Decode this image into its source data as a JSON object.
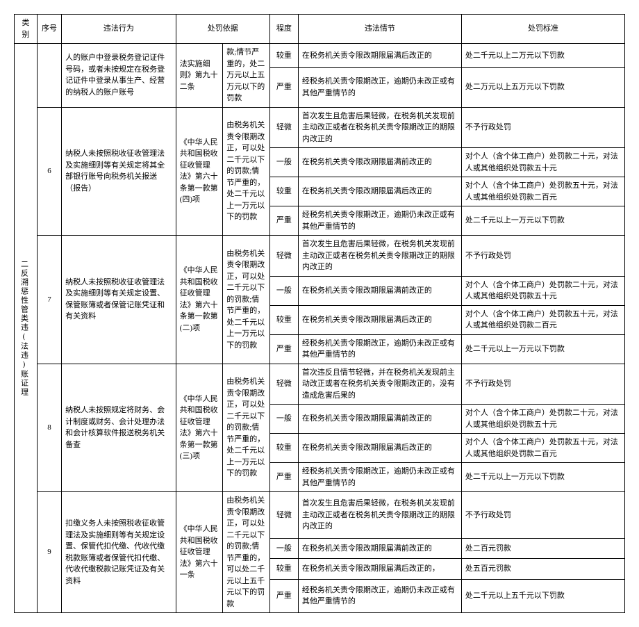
{
  "headers": {
    "category": "类别",
    "num": "序号",
    "act": "违法行为",
    "basis": "处罚依据",
    "severity": "程度",
    "circumstance": "违法情节",
    "standard": "处罚标准"
  },
  "category_label": "二反溯惩性管类违(法违)账证理",
  "groups": [
    {
      "num": "",
      "act": "人的账户中登录税务登记证件号码，或者未按规定在税务登记证件中登录从事生产、经营的纳税人的账户账号",
      "basis": "法实施细则》第九十二条",
      "basis2": "款;情节严重的，处二万元以上五万元以下的罚款",
      "rows": [
        {
          "sev": "较重",
          "circ": "在税务机关责令限改期限届满后改正的",
          "std": "处二千元以上二万元以下罚款"
        },
        {
          "sev": "严重",
          "circ": "经税务机关责令限期改正，逾期仍未改正或有其他严重情节的",
          "std": "处二万元以上五万元以下罚款"
        }
      ]
    },
    {
      "num": "6",
      "act": "纳税人未按照税收征收管理法及实施细则等有关规定将其全部银行账号向税务机关报送（报告）",
      "basis": "《中华人民共和国税收征收管理法》第六十条第一款第(四)项",
      "basis2": "由税务机关责令限期改正，可以处二千元以下的罚款;情节严重的，处二千元以上一万元以下的罚款",
      "rows": [
        {
          "sev": "轻微",
          "circ": "首次发生且危害后果轻微，在税务机关发现前主动改正或者在税务机关责令限期改正的期限内改正的",
          "std": "不予行政处罚"
        },
        {
          "sev": "一般",
          "circ": "在税务机关责令限改期限届满前改正的",
          "std": "对个人（含个体工商户）处罚款二十元，对法人或其他组织处罚款五十元"
        },
        {
          "sev": "较重",
          "circ": "在税务机关责令限改期限届满后改正的",
          "std": "对个人（含个体工商户）处罚款五十元，对法人或其他组织处罚款二百元"
        },
        {
          "sev": "严重",
          "circ": "经税务机关责令限期改正，逾期仍未改正或有其他严重情节的",
          "std": "处二千元以上一万元以下罚款"
        }
      ]
    },
    {
      "num": "7",
      "act": "纳税人未按照税收征收管理法及实施细则等有关规定设置、保管账簿或者保管记账凭证和有关资料",
      "basis": "《中华人民共和国税收征收管理法》第六十条第一款第(二)项",
      "basis2": "由税务机关责令限期改正，可以处二千元以下的罚款;情节严重的，处二千元以上一万元以下的罚款",
      "rows": [
        {
          "sev": "轻微",
          "circ": "首次发生且危害后果轻微，在税务机关发现前主动改正或者在税务机关责令限期改正的期限内改正的",
          "std": "不予行政处罚"
        },
        {
          "sev": "一般",
          "circ": "在税务机关责令限改期限届满前改正的",
          "std": "对个人（含个体工商户）处罚款二十元，对法人或其他组织处罚款五十元"
        },
        {
          "sev": "较重",
          "circ": "在税务机关责令限改期限届满后改正的",
          "std": "对个人（含个体工商户）处罚款五十元，对法人或其他组织处罚款二百元"
        },
        {
          "sev": "严重",
          "circ": "经税务机关责令限期改正，逾期仍未改正或有其他严重情节的",
          "std": "处二千元以上一万元以下罚款"
        }
      ]
    },
    {
      "num": "8",
      "act": "纳税人未按照规定将财务、会计制度或财务、会计处理办法和会计核算软件报送税务机关备查",
      "basis": "《中华人民共和国税收征收管理法》第六十条第一款第(三)项",
      "basis2": "由税务机关责令限期改正，可以处二千元以下的罚款;情节严重的，处二千元以上一万元以下的罚款",
      "rows": [
        {
          "sev": "轻微",
          "circ": "首次违反且情节轻微，并在税务机关发现前主动改正或者在税务机关责令限期改正的，没有造成危害后果的",
          "std": "不予行政处罚"
        },
        {
          "sev": "一般",
          "circ": "在税务机关责令限改期限届满前改正的",
          "std": "对个人（含个体工商户）处罚款二十元，对法人或其他组织处罚款五十元"
        },
        {
          "sev": "较重",
          "circ": "在税务机关责令限改期限届满后改正的",
          "std": "对个人（含个体工商户）处罚款五十元，对法人或其他组织处罚款二百元"
        },
        {
          "sev": "严重",
          "circ": "经税务机关责令限期改正，逾期仍未改正或有其他严重情节的",
          "std": "处二千元以上一万元以下罚款"
        }
      ]
    },
    {
      "num": "9",
      "act": "扣缴义务人未按照税收征收管理法及实施细则等有关规定设置、保管代扣代缴、代收代缴税款账簿或者保管代扣代缴、代收代缴税款记账凭证及有关资料",
      "basis": "《中华人民共和国税收征收管理法》第六十一条",
      "basis2": "由税务机关责令限期改正，可以处二千元以下的罚款;情节严重的，可以处二千元以上五千元以下的罚款",
      "rows": [
        {
          "sev": "轻微",
          "circ": "首次发生且危害后果轻微，在税务机关发现前主动改正或者在税务机关责令限期改正的期限内改正的",
          "std": "不予行政处罚"
        },
        {
          "sev": "一般",
          "circ": "在税务机关责令限改期限届满前改正的",
          "std": "处二百元罚款"
        },
        {
          "sev": "较重",
          "circ": "在税务机关责令限改期限届满后改正的，",
          "std": "处五百元罚款"
        },
        {
          "sev": "严重",
          "circ": "经税务机关责令限期改正，逾期仍未改正或有其他严重情节的",
          "std": "处二千元以上五千元以下罚款"
        }
      ]
    }
  ]
}
